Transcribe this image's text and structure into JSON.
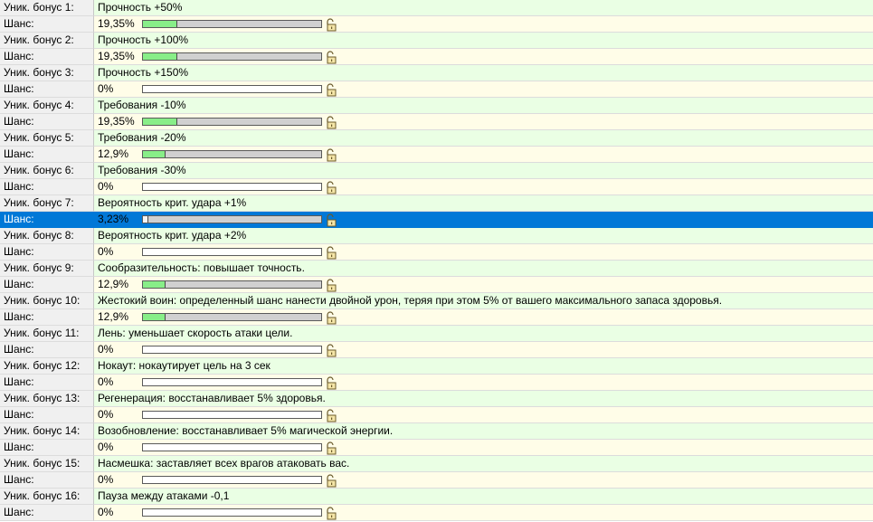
{
  "rows": [
    {
      "kind": "bonus",
      "label": "Уник. бонус 1:",
      "value": "Прочность +50%"
    },
    {
      "kind": "chance",
      "label": "Шанс:",
      "value": "19,35%",
      "fill": 0.1935
    },
    {
      "kind": "bonus",
      "label": "Уник. бонус 2:",
      "value": "Прочность +100%"
    },
    {
      "kind": "chance",
      "label": "Шанс:",
      "value": "19,35%",
      "fill": 0.1935
    },
    {
      "kind": "bonus",
      "label": "Уник. бонус 3:",
      "value": "Прочность +150%"
    },
    {
      "kind": "chance",
      "label": "Шанс:",
      "value": "0%",
      "fill": 0
    },
    {
      "kind": "bonus",
      "label": "Уник. бонус 4:",
      "value": "Требования -10%"
    },
    {
      "kind": "chance",
      "label": "Шанс:",
      "value": "19,35%",
      "fill": 0.1935
    },
    {
      "kind": "bonus",
      "label": "Уник. бонус 5:",
      "value": "Требования -20%"
    },
    {
      "kind": "chance",
      "label": "Шанс:",
      "value": "12,9%",
      "fill": 0.129
    },
    {
      "kind": "bonus",
      "label": "Уник. бонус 6:",
      "value": "Требования -30%"
    },
    {
      "kind": "chance",
      "label": "Шанс:",
      "value": "0%",
      "fill": 0
    },
    {
      "kind": "bonus",
      "label": "Уник. бонус 7:",
      "value": "Вероятность крит. удара +1%"
    },
    {
      "kind": "chance",
      "label": "Шанс:",
      "value": "3,23%",
      "fill": 0.0323,
      "selected": true
    },
    {
      "kind": "bonus",
      "label": "Уник. бонус 8:",
      "value": "Вероятность крит. удара +2%"
    },
    {
      "kind": "chance",
      "label": "Шанс:",
      "value": "0%",
      "fill": 0
    },
    {
      "kind": "bonus",
      "label": "Уник. бонус 9:",
      "value": "Сообразительность: повышает точность."
    },
    {
      "kind": "chance",
      "label": "Шанс:",
      "value": "12,9%",
      "fill": 0.129
    },
    {
      "kind": "bonus",
      "label": "Уник. бонус 10:",
      "value": "Жестокий воин: определенный шанс нанести двойной урон, теряя при этом 5% от вашего максимального запаса здоровья."
    },
    {
      "kind": "chance",
      "label": "Шанс:",
      "value": "12,9%",
      "fill": 0.129
    },
    {
      "kind": "bonus",
      "label": "Уник. бонус 11:",
      "value": "Лень: уменьшает скорость атаки цели."
    },
    {
      "kind": "chance",
      "label": "Шанс:",
      "value": "0%",
      "fill": 0
    },
    {
      "kind": "bonus",
      "label": "Уник. бонус 12:",
      "value": "Нокаут: нокаутирует цель на 3 сек"
    },
    {
      "kind": "chance",
      "label": "Шанс:",
      "value": "0%",
      "fill": 0
    },
    {
      "kind": "bonus",
      "label": "Уник. бонус 13:",
      "value": "Регенерация: восстанавливает 5% здоровья."
    },
    {
      "kind": "chance",
      "label": "Шанс:",
      "value": "0%",
      "fill": 0
    },
    {
      "kind": "bonus",
      "label": "Уник. бонус 14:",
      "value": "Возобновление: восстанавливает 5% магической энергии."
    },
    {
      "kind": "chance",
      "label": "Шанс:",
      "value": "0%",
      "fill": 0
    },
    {
      "kind": "bonus",
      "label": "Уник. бонус 15:",
      "value": "Насмешка: заставляет всех врагов атаковать вас."
    },
    {
      "kind": "chance",
      "label": "Шанс:",
      "value": "0%",
      "fill": 0
    },
    {
      "kind": "bonus",
      "label": "Уник. бонус 16:",
      "value": "Пауза между атаками -0,1"
    },
    {
      "kind": "chance",
      "label": "Шанс:",
      "value": "0%",
      "fill": 0
    }
  ],
  "icons": {
    "lock": "padlock-open-icon"
  },
  "colors": {
    "bonus_bg": "#eaffe4",
    "chance_bg": "#fffde8",
    "label_bg": "#f0f0f0",
    "selection": "#0078d7",
    "bar_fill": "#88ee88"
  }
}
